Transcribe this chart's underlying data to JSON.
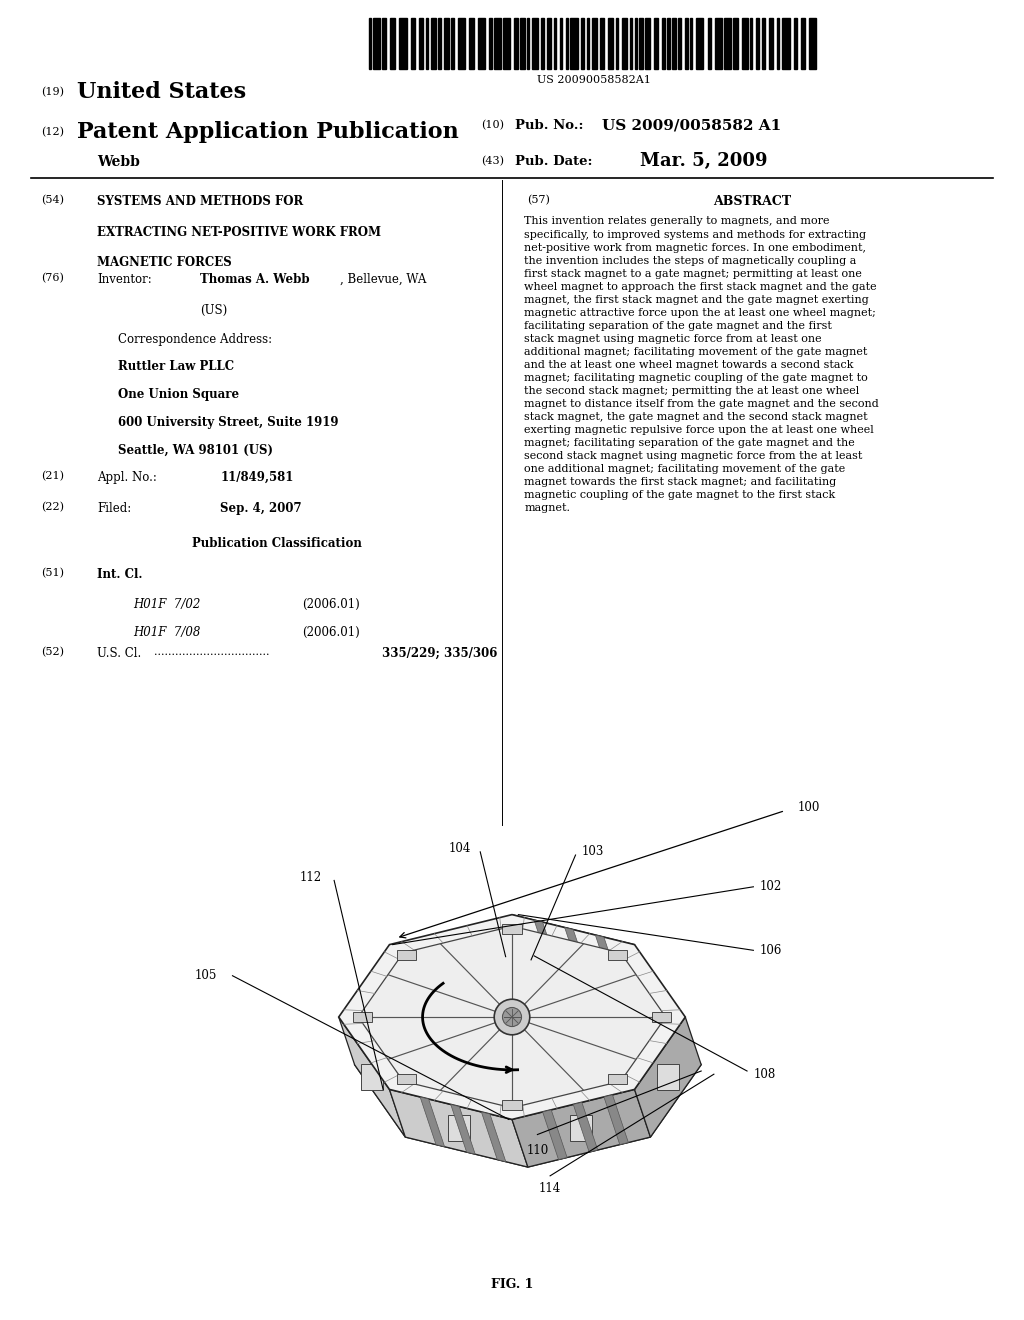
{
  "background_color": "#ffffff",
  "barcode_text": "US 20090058582A1",
  "header": {
    "number19": "(19)",
    "us_text": "United States",
    "number12": "(12)",
    "pat_app_pub": "Patent Application Publication",
    "inventor_name": "Webb",
    "number10": "(10)",
    "pub_no_label": "Pub. No.:",
    "pub_no_value": "US 2009/0058582 A1",
    "number43": "(43)",
    "pub_date_label": "Pub. Date:",
    "pub_date_value": "Mar. 5, 2009"
  },
  "left_col": {
    "num54": "(54)",
    "title_line1": "SYSTEMS AND METHODS FOR",
    "title_line2": "EXTRACTING NET-POSITIVE WORK FROM",
    "title_line3": "MAGNETIC FORCES",
    "num76": "(76)",
    "inventor_label": "Inventor:",
    "inventor_bold": "Thomas A. Webb",
    "inventor_rest": ", Bellevue, WA",
    "inventor_us": "(US)",
    "corr_addr_label": "Correspondence Address:",
    "corr_addr_firm": "Ruttler Law PLLC",
    "corr_addr_line1": "One Union Square",
    "corr_addr_line2": "600 University Street, Suite 1919",
    "corr_addr_line3": "Seattle, WA 98101 (US)",
    "num21": "(21)",
    "appl_no_label": "Appl. No.:",
    "appl_no_value": "11/849,581",
    "num22": "(22)",
    "filed_label": "Filed:",
    "filed_value": "Sep. 4, 2007",
    "pub_class_header": "Publication Classification",
    "num51": "(51)",
    "int_cl_label": "Int. Cl.",
    "int_cl_1_code": "H01F  7/02",
    "int_cl_1_year": "(2006.01)",
    "int_cl_2_code": "H01F  7/08",
    "int_cl_2_year": "(2006.01)",
    "num52": "(52)",
    "us_cl_label": "U.S. Cl.",
    "us_cl_dots": ".................................",
    "us_cl_value": "335/229; 335/306"
  },
  "right_col": {
    "num57": "(57)",
    "abstract_header": "ABSTRACT",
    "abstract_text": "This invention relates generally to magnets, and more specifically, to improved systems and methods for extracting net-positive work from magnetic forces. In one embodiment, the invention includes the steps of magnetically coupling a first stack magnet to a gate magnet; permitting at least one wheel magnet to approach the first stack magnet and the gate magnet, the first stack magnet and the gate magnet exerting magnetic attractive force upon the at least one wheel magnet; facilitating separation of the gate magnet and the first stack magnet using magnetic force from at least one additional magnet; facilitating movement of the gate magnet and the at least one wheel magnet towards a second stack magnet; facilitating magnetic coupling of the gate magnet to the second stack magnet; permitting the at least one wheel magnet to distance itself from the gate magnet and the second stack magnet, the gate magnet and the second stack magnet exerting magnetic repulsive force upon the at least one wheel magnet; facilitating separation of the gate magnet and the second stack magnet using magnetic force from the at least one additional magnet; facilitating movement of the gate magnet towards the first stack magnet; and facilitating magnetic coupling of the gate magnet to the first stack magnet."
  },
  "fig_label": "FIG. 1"
}
